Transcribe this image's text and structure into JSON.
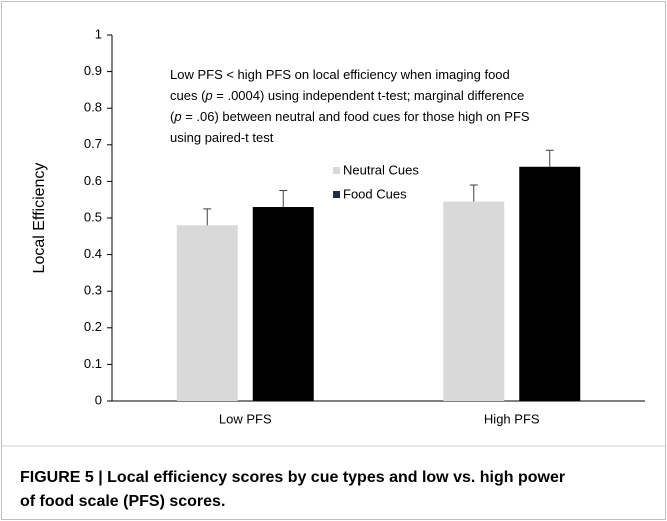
{
  "chart_data": {
    "type": "bar",
    "ylabel": "Local Efficiency",
    "categories": [
      "Low PFS",
      "High PFS"
    ],
    "series": [
      {
        "name": "Neutral Cues",
        "color": "#d9d9d9",
        "values": [
          0.48,
          0.545
        ],
        "errors": [
          0.045,
          0.045
        ]
      },
      {
        "name": "Food Cues",
        "color": "#000000",
        "values": [
          0.53,
          0.64
        ],
        "errors": [
          0.045,
          0.045
        ]
      }
    ],
    "ylim": [
      0,
      1
    ],
    "yticks": [
      0,
      0.1,
      0.2,
      0.3,
      0.4,
      0.5,
      0.6,
      0.7,
      0.8,
      0.9,
      1
    ],
    "annotation": [
      [
        "Low PFS < high PFS on local efficiency when imaging food"
      ],
      [
        "cues (",
        "p",
        " = .0004) using independent t-test; marginal difference"
      ],
      [
        "(",
        "p",
        " = .06) between neutral and food cues for those high on PFS"
      ],
      [
        "using paired-t test"
      ]
    ],
    "caption": [
      "FIGURE 5 | Local efficiency scores by cue types and low vs. high power",
      "of food scale (PFS) scores."
    ]
  }
}
